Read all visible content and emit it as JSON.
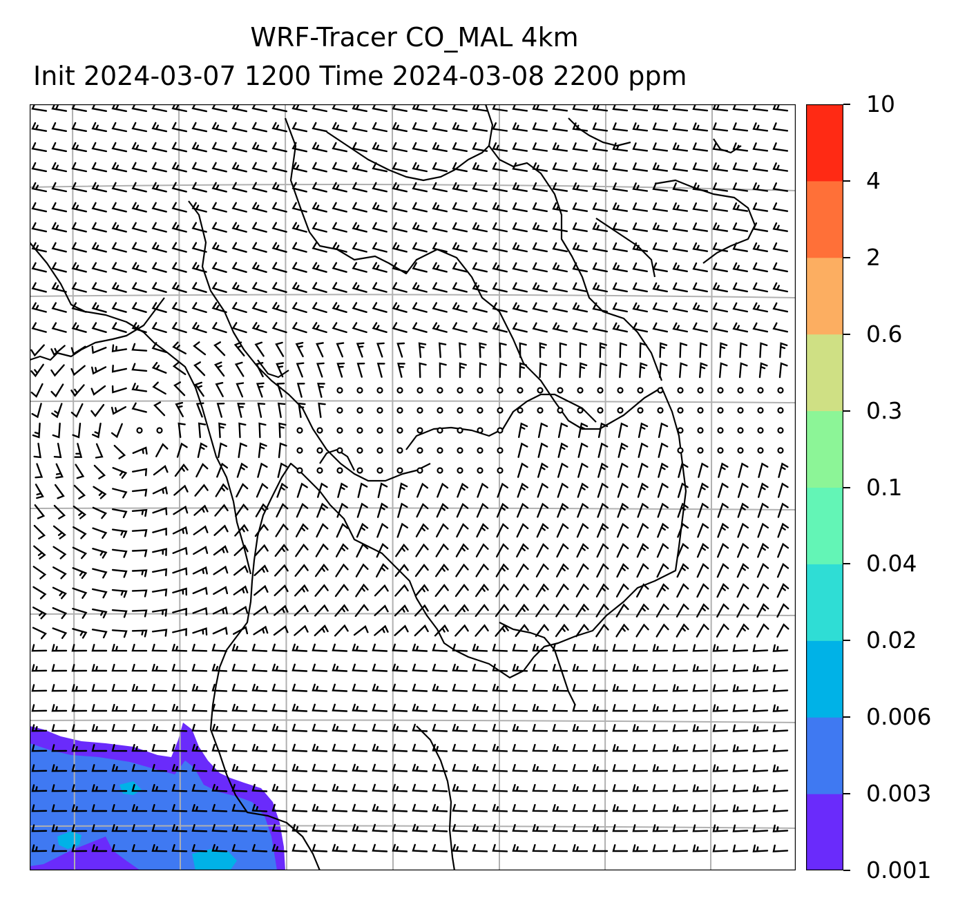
{
  "title_line1": "WRF-Tracer CO_MAL 4km",
  "title_line2": "Init 2024-03-07 1200 Time 2024-03-08 2200 ppm",
  "colorbar": {
    "levels": [
      "0.001",
      "0.003",
      "0.006",
      "0.02",
      "0.04",
      "0.1",
      "0.3",
      "0.6",
      "2",
      "4",
      "10"
    ],
    "colors": [
      "#6a2bfb",
      "#3f79f2",
      "#00b2e7",
      "#2fddd5",
      "#63f5b6",
      "#8cf597",
      "#cfe084",
      "#fcae61",
      "#ff7038",
      "#ff2a14"
    ]
  },
  "map": {
    "background": "#ffffff",
    "gridline_color": "#b0b0b0",
    "coastline_color": "#000000",
    "barb_color": "#000000"
  }
}
